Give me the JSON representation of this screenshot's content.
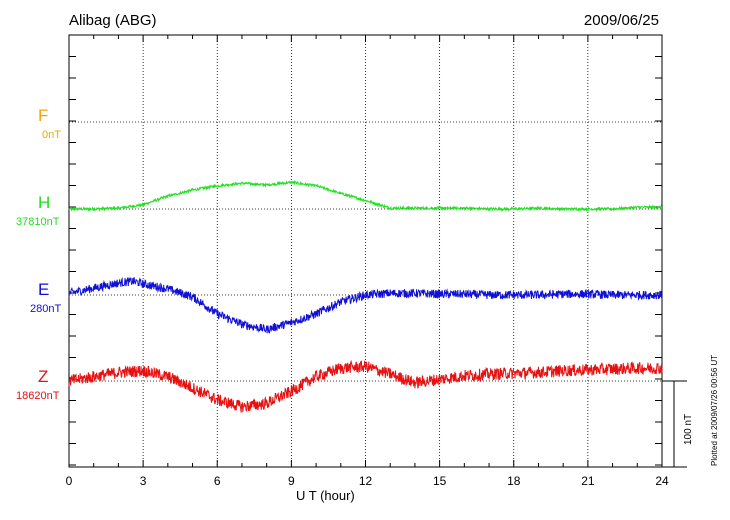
{
  "header": {
    "station": "Alibag (ABG)",
    "date": "2009/06/25"
  },
  "footer": {
    "plotted_at": "Plotted at 2009/07/26 00:56 UT"
  },
  "chart_data": {
    "type": "line",
    "title": "Alibag (ABG)",
    "date": "2009/06/25",
    "xlabel": "U T (hour)",
    "xlim": [
      0,
      24
    ],
    "x_ticks": [
      0,
      3,
      6,
      9,
      12,
      15,
      18,
      21,
      24
    ],
    "x_tick_labels": [
      "0",
      "3",
      "6",
      "9",
      "12",
      "15",
      "18",
      "21",
      "24"
    ],
    "scale_bar": "100 nT",
    "components": [
      {
        "name": "F",
        "base_label": "0nT",
        "color": "#f0a800",
        "visible_data": false
      },
      {
        "name": "H",
        "base_label": "37810nT",
        "color": "#22e022"
      },
      {
        "name": "E",
        "base_label": "280nT",
        "color": "#1010d8"
      },
      {
        "name": "Z",
        "base_label": "18620nT",
        "color": "#e81010"
      }
    ],
    "series": [
      {
        "name": "H",
        "color": "#22e022",
        "noise_nT": 1.5,
        "x": [
          0,
          1,
          2,
          3,
          4,
          5,
          6,
          7,
          8,
          9,
          10,
          11,
          12,
          13,
          14,
          15,
          16,
          17,
          18,
          19,
          20,
          21,
          22,
          23,
          24
        ],
        "values": [
          0,
          0,
          1,
          5,
          15,
          22,
          27,
          30,
          28,
          31,
          27,
          18,
          10,
          1,
          1,
          1,
          1,
          0,
          0,
          1,
          0,
          0,
          0,
          2,
          2
        ]
      },
      {
        "name": "E",
        "color": "#1010d8",
        "noise_nT": 5,
        "x": [
          0,
          1,
          2,
          2.6,
          3,
          4,
          5,
          6,
          7,
          8,
          9,
          10,
          11,
          12,
          13,
          14,
          15,
          16,
          17,
          18,
          19,
          20,
          21,
          22,
          23,
          24
        ],
        "values": [
          2,
          8,
          14,
          16,
          13,
          7,
          -2,
          -22,
          -34,
          -40,
          -32,
          -22,
          -8,
          0,
          2,
          2,
          1,
          1,
          0,
          0,
          0,
          1,
          1,
          0,
          0,
          0
        ]
      },
      {
        "name": "Z",
        "color": "#e81010",
        "noise_nT": 7,
        "x": [
          0,
          1,
          2,
          3,
          4,
          5,
          6,
          7,
          8,
          9,
          10,
          11,
          12,
          13,
          14,
          15,
          16,
          17,
          18,
          19,
          20,
          21,
          22,
          23,
          24
        ],
        "values": [
          0,
          5,
          10,
          12,
          5,
          -8,
          -22,
          -30,
          -26,
          -12,
          5,
          15,
          17,
          8,
          -2,
          2,
          6,
          8,
          9,
          10,
          12,
          13,
          14,
          15,
          15
        ]
      }
    ]
  }
}
